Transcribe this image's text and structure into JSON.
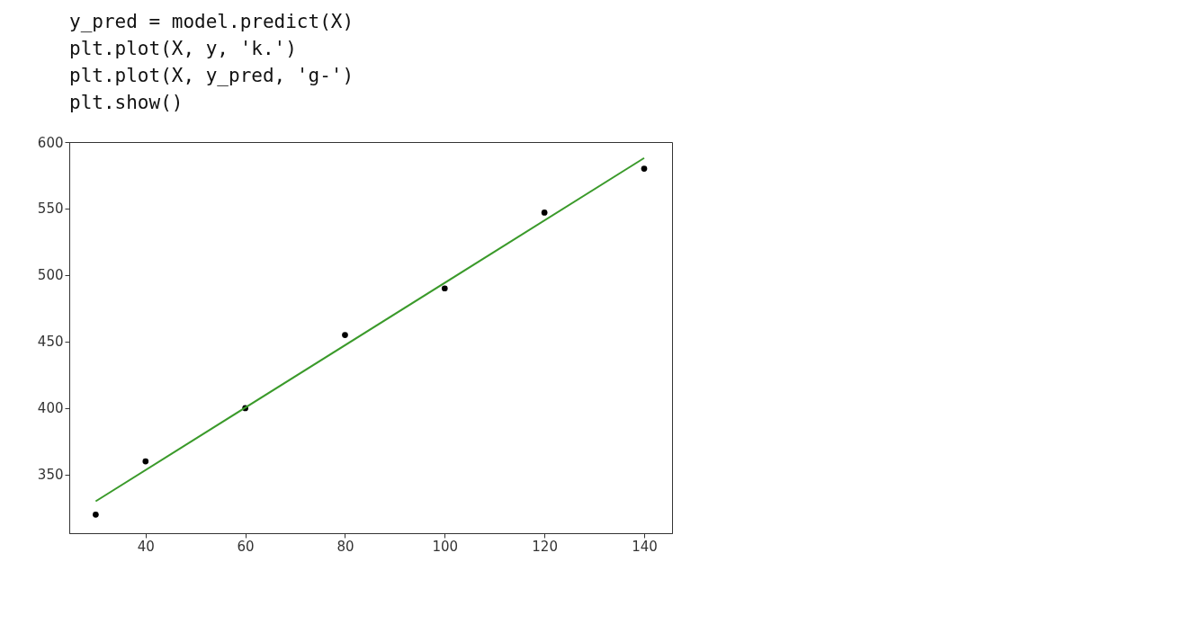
{
  "chart_data": {
    "type": "scatter",
    "annotations": [
      "y_pred = model.predict(X)",
      "plt.plot(X, y, 'k.')",
      "plt.plot(X, y_pred, 'g-')",
      "plt.show()"
    ],
    "series": [
      {
        "color": "#000000",
        "marker": "circle",
        "x": [
          30,
          40,
          60,
          80,
          100,
          120,
          140
        ],
        "values": [
          320,
          360,
          400,
          455,
          490,
          547,
          580
        ]
      },
      {
        "type": "line",
        "color": "#3a9a2a",
        "line_style": "solid",
        "x": [
          30,
          140
        ],
        "values": [
          330,
          588
        ]
      }
    ],
    "xlim": [
      24.7,
      145.6
    ],
    "ylim": [
      306,
      600
    ],
    "xticks": [
      40,
      60,
      80,
      100,
      120,
      140
    ],
    "yticks": [
      350,
      400,
      450,
      500,
      550,
      600
    ],
    "grid": false
  }
}
